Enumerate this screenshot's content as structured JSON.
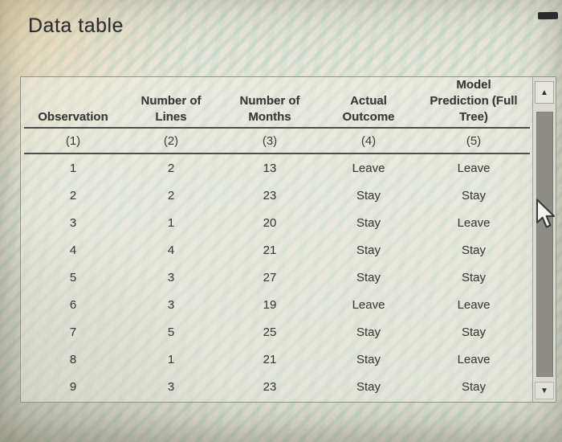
{
  "title": "Data table",
  "table": {
    "columns": [
      {
        "header": "Observation",
        "number": "(1)"
      },
      {
        "header": "Number of\nLines",
        "number": "(2)"
      },
      {
        "header": "Number of\nMonths",
        "number": "(3)"
      },
      {
        "header": "Actual\nOutcome",
        "number": "(4)"
      },
      {
        "header": "Model\nPrediction (Full\nTree)",
        "number": "(5)"
      }
    ],
    "rows": [
      [
        "1",
        "2",
        "13",
        "Leave",
        "Leave"
      ],
      [
        "2",
        "2",
        "23",
        "Stay",
        "Stay"
      ],
      [
        "3",
        "1",
        "20",
        "Stay",
        "Leave"
      ],
      [
        "4",
        "4",
        "21",
        "Stay",
        "Stay"
      ],
      [
        "5",
        "3",
        "27",
        "Stay",
        "Stay"
      ],
      [
        "6",
        "3",
        "19",
        "Leave",
        "Leave"
      ],
      [
        "7",
        "5",
        "25",
        "Stay",
        "Stay"
      ],
      [
        "8",
        "1",
        "21",
        "Stay",
        "Leave"
      ],
      [
        "9",
        "3",
        "23",
        "Stay",
        "Stay"
      ]
    ]
  },
  "scrollbar": {
    "up_icon": "▲",
    "down_icon": "▼"
  },
  "icons": {
    "minimize_dash": "dash",
    "cursor": "arrow-pointer"
  },
  "colors": {
    "stripe_teal": "#76b29e",
    "text": "#3d3d3d",
    "panel_border": "#8f948a",
    "scroll_thumb": "#8d8d85",
    "dash": "#2b2b2b"
  }
}
